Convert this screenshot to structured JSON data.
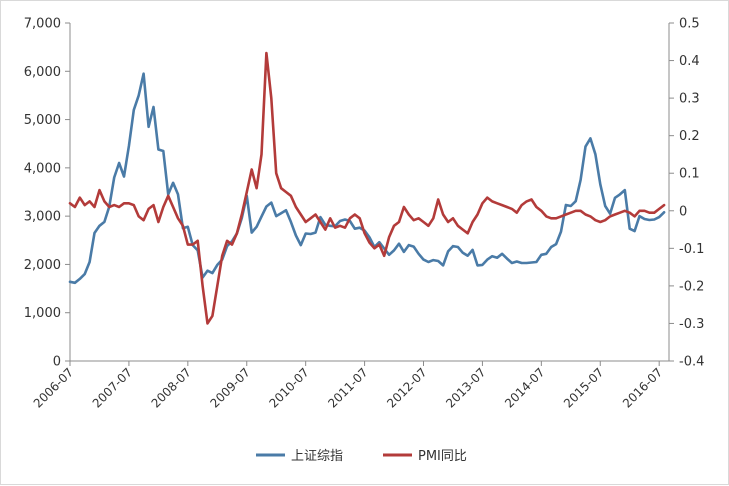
{
  "chart_data": {
    "type": "line",
    "title": "",
    "xlabel": "",
    "ylabel_left": "",
    "ylabel_right": "",
    "left_axis": {
      "range": [
        0,
        7000
      ],
      "ticks": [
        0,
        1000,
        2000,
        3000,
        4000,
        5000,
        6000,
        7000
      ],
      "tick_labels": [
        "0",
        "1,000",
        "2,000",
        "3,000",
        "4,000",
        "5,000",
        "6,000",
        "7,000"
      ]
    },
    "right_axis": {
      "range": [
        -0.4,
        0.5
      ],
      "ticks": [
        -0.4,
        -0.3,
        -0.2,
        -0.1,
        0,
        0.1,
        0.2,
        0.3,
        0.4,
        0.5
      ],
      "tick_labels": [
        "-0.4",
        "-0.3",
        "-0.2",
        "-0.1",
        "0",
        "0.1",
        "0.2",
        "0.3",
        "0.4",
        "0.5"
      ]
    },
    "x_axis": {
      "range": [
        "2006-07",
        "2016-09"
      ],
      "tick_labels": [
        "2006-07",
        "2007-07",
        "2008-07",
        "2009-07",
        "2010-07",
        "2011-07",
        "2012-07",
        "2013-07",
        "2014-07",
        "2015-07",
        "2016-07"
      ]
    },
    "grid": false,
    "legend_position": "bottom",
    "series": [
      {
        "name": "上证综指",
        "axis": "left",
        "color": "#4a7ba7",
        "points": [
          [
            "2006-07",
            1640
          ],
          [
            "2006-08",
            1620
          ],
          [
            "2006-09",
            1700
          ],
          [
            "2006-10",
            1800
          ],
          [
            "2006-11",
            2050
          ],
          [
            "2006-12",
            2650
          ],
          [
            "2007-01",
            2800
          ],
          [
            "2007-02",
            2880
          ],
          [
            "2007-03",
            3200
          ],
          [
            "2007-04",
            3800
          ],
          [
            "2007-05",
            4100
          ],
          [
            "2007-06",
            3820
          ],
          [
            "2007-07",
            4450
          ],
          [
            "2007-08",
            5200
          ],
          [
            "2007-09",
            5500
          ],
          [
            "2007-10",
            5950
          ],
          [
            "2007-11",
            4850
          ],
          [
            "2007-12",
            5260
          ],
          [
            "2008-01",
            4380
          ],
          [
            "2008-02",
            4350
          ],
          [
            "2008-03",
            3450
          ],
          [
            "2008-04",
            3690
          ],
          [
            "2008-05",
            3450
          ],
          [
            "2008-06",
            2750
          ],
          [
            "2008-07",
            2780
          ],
          [
            "2008-08",
            2400
          ],
          [
            "2008-09",
            2290
          ],
          [
            "2008-10",
            1730
          ],
          [
            "2008-11",
            1870
          ],
          [
            "2008-12",
            1820
          ],
          [
            "2009-01",
            1990
          ],
          [
            "2009-02",
            2100
          ],
          [
            "2009-03",
            2380
          ],
          [
            "2009-04",
            2480
          ],
          [
            "2009-05",
            2640
          ],
          [
            "2009-06",
            2960
          ],
          [
            "2009-07",
            3420
          ],
          [
            "2009-08",
            2660
          ],
          [
            "2009-09",
            2780
          ],
          [
            "2009-10",
            2990
          ],
          [
            "2009-11",
            3200
          ],
          [
            "2009-12",
            3280
          ],
          [
            "2010-01",
            3000
          ],
          [
            "2010-02",
            3060
          ],
          [
            "2010-03",
            3120
          ],
          [
            "2010-04",
            2880
          ],
          [
            "2010-05",
            2600
          ],
          [
            "2010-06",
            2400
          ],
          [
            "2010-07",
            2640
          ],
          [
            "2010-08",
            2630
          ],
          [
            "2010-09",
            2660
          ],
          [
            "2010-10",
            2980
          ],
          [
            "2010-11",
            2820
          ],
          [
            "2010-12",
            2800
          ],
          [
            "2011-01",
            2790
          ],
          [
            "2011-02",
            2900
          ],
          [
            "2011-03",
            2930
          ],
          [
            "2011-04",
            2900
          ],
          [
            "2011-05",
            2740
          ],
          [
            "2011-06",
            2760
          ],
          [
            "2011-07",
            2700
          ],
          [
            "2011-08",
            2560
          ],
          [
            "2011-09",
            2360
          ],
          [
            "2011-10",
            2460
          ],
          [
            "2011-11",
            2330
          ],
          [
            "2011-12",
            2200
          ],
          [
            "2012-01",
            2290
          ],
          [
            "2012-02",
            2430
          ],
          [
            "2012-03",
            2260
          ],
          [
            "2012-04",
            2400
          ],
          [
            "2012-05",
            2370
          ],
          [
            "2012-06",
            2220
          ],
          [
            "2012-07",
            2100
          ],
          [
            "2012-08",
            2050
          ],
          [
            "2012-09",
            2090
          ],
          [
            "2012-10",
            2070
          ],
          [
            "2012-11",
            1980
          ],
          [
            "2012-12",
            2270
          ],
          [
            "2013-01",
            2380
          ],
          [
            "2013-02",
            2360
          ],
          [
            "2013-03",
            2240
          ],
          [
            "2013-04",
            2180
          ],
          [
            "2013-05",
            2300
          ],
          [
            "2013-06",
            1980
          ],
          [
            "2013-07",
            1990
          ],
          [
            "2013-08",
            2100
          ],
          [
            "2013-09",
            2170
          ],
          [
            "2013-10",
            2140
          ],
          [
            "2013-11",
            2220
          ],
          [
            "2013-12",
            2120
          ],
          [
            "2014-01",
            2030
          ],
          [
            "2014-02",
            2060
          ],
          [
            "2014-03",
            2030
          ],
          [
            "2014-04",
            2030
          ],
          [
            "2014-05",
            2040
          ],
          [
            "2014-06",
            2050
          ],
          [
            "2014-07",
            2200
          ],
          [
            "2014-08",
            2220
          ],
          [
            "2014-09",
            2360
          ],
          [
            "2014-10",
            2420
          ],
          [
            "2014-11",
            2680
          ],
          [
            "2014-12",
            3230
          ],
          [
            "2015-01",
            3210
          ],
          [
            "2015-02",
            3310
          ],
          [
            "2015-03",
            3750
          ],
          [
            "2015-04",
            4440
          ],
          [
            "2015-05",
            4610
          ],
          [
            "2015-06",
            4280
          ],
          [
            "2015-07",
            3660
          ],
          [
            "2015-08",
            3210
          ],
          [
            "2015-09",
            3050
          ],
          [
            "2015-10",
            3380
          ],
          [
            "2015-11",
            3450
          ],
          [
            "2015-12",
            3540
          ],
          [
            "2016-01",
            2740
          ],
          [
            "2016-02",
            2690
          ],
          [
            "2016-03",
            3000
          ],
          [
            "2016-04",
            2940
          ],
          [
            "2016-05",
            2920
          ],
          [
            "2016-06",
            2930
          ],
          [
            "2016-07",
            2980
          ],
          [
            "2016-08",
            3080
          ]
        ]
      },
      {
        "name": "PMI同比",
        "axis": "right",
        "color": "#b33b3a",
        "points": [
          [
            "2006-07",
            0.02
          ],
          [
            "2006-08",
            0.01
          ],
          [
            "2006-09",
            0.035
          ],
          [
            "2006-10",
            0.015
          ],
          [
            "2006-11",
            0.025
          ],
          [
            "2006-12",
            0.01
          ],
          [
            "2007-01",
            0.055
          ],
          [
            "2007-02",
            0.025
          ],
          [
            "2007-03",
            0.01
          ],
          [
            "2007-04",
            0.015
          ],
          [
            "2007-05",
            0.01
          ],
          [
            "2007-06",
            0.02
          ],
          [
            "2007-07",
            0.02
          ],
          [
            "2007-08",
            0.015
          ],
          [
            "2007-09",
            -0.015
          ],
          [
            "2007-10",
            -0.025
          ],
          [
            "2007-11",
            0.005
          ],
          [
            "2007-12",
            0.015
          ],
          [
            "2008-01",
            -0.03
          ],
          [
            "2008-02",
            0.01
          ],
          [
            "2008-03",
            0.04
          ],
          [
            "2008-04",
            0.01
          ],
          [
            "2008-05",
            -0.02
          ],
          [
            "2008-06",
            -0.04
          ],
          [
            "2008-07",
            -0.09
          ],
          [
            "2008-08",
            -0.09
          ],
          [
            "2008-09",
            -0.08
          ],
          [
            "2008-10",
            -0.2
          ],
          [
            "2008-11",
            -0.3
          ],
          [
            "2008-12",
            -0.28
          ],
          [
            "2009-01",
            -0.2
          ],
          [
            "2009-02",
            -0.12
          ],
          [
            "2009-03",
            -0.08
          ],
          [
            "2009-04",
            -0.09
          ],
          [
            "2009-05",
            -0.06
          ],
          [
            "2009-06",
            -0.01
          ],
          [
            "2009-07",
            0.05
          ],
          [
            "2009-08",
            0.11
          ],
          [
            "2009-09",
            0.06
          ],
          [
            "2009-10",
            0.15
          ],
          [
            "2009-11",
            0.42
          ],
          [
            "2009-12",
            0.3
          ],
          [
            "2010-01",
            0.1
          ],
          [
            "2010-02",
            0.06
          ],
          [
            "2010-03",
            0.05
          ],
          [
            "2010-04",
            0.04
          ],
          [
            "2010-05",
            0.01
          ],
          [
            "2010-06",
            -0.01
          ],
          [
            "2010-07",
            -0.03
          ],
          [
            "2010-08",
            -0.02
          ],
          [
            "2010-09",
            -0.01
          ],
          [
            "2010-10",
            -0.03
          ],
          [
            "2010-11",
            -0.05
          ],
          [
            "2010-12",
            -0.02
          ],
          [
            "2011-01",
            -0.045
          ],
          [
            "2011-02",
            -0.04
          ],
          [
            "2011-03",
            -0.045
          ],
          [
            "2011-04",
            -0.02
          ],
          [
            "2011-05",
            -0.01
          ],
          [
            "2011-06",
            -0.02
          ],
          [
            "2011-07",
            -0.06
          ],
          [
            "2011-08",
            -0.085
          ],
          [
            "2011-09",
            -0.1
          ],
          [
            "2011-10",
            -0.09
          ],
          [
            "2011-11",
            -0.12
          ],
          [
            "2011-12",
            -0.07
          ],
          [
            "2012-01",
            -0.04
          ],
          [
            "2012-02",
            -0.03
          ],
          [
            "2012-03",
            0.01
          ],
          [
            "2012-04",
            -0.01
          ],
          [
            "2012-05",
            -0.025
          ],
          [
            "2012-06",
            -0.02
          ],
          [
            "2012-07",
            -0.03
          ],
          [
            "2012-08",
            -0.04
          ],
          [
            "2012-09",
            -0.02
          ],
          [
            "2012-10",
            0.03
          ],
          [
            "2012-11",
            -0.01
          ],
          [
            "2012-12",
            -0.03
          ],
          [
            "2013-01",
            -0.02
          ],
          [
            "2013-02",
            -0.04
          ],
          [
            "2013-03",
            -0.05
          ],
          [
            "2013-04",
            -0.06
          ],
          [
            "2013-05",
            -0.03
          ],
          [
            "2013-06",
            -0.01
          ],
          [
            "2013-07",
            0.02
          ],
          [
            "2013-08",
            0.035
          ],
          [
            "2013-09",
            0.025
          ],
          [
            "2013-10",
            0.02
          ],
          [
            "2013-11",
            0.015
          ],
          [
            "2013-12",
            0.01
          ],
          [
            "2014-01",
            0.005
          ],
          [
            "2014-02",
            -0.005
          ],
          [
            "2014-03",
            0.015
          ],
          [
            "2014-04",
            0.025
          ],
          [
            "2014-05",
            0.03
          ],
          [
            "2014-06",
            0.01
          ],
          [
            "2014-07",
            0.0
          ],
          [
            "2014-08",
            -0.015
          ],
          [
            "2014-09",
            -0.02
          ],
          [
            "2014-10",
            -0.02
          ],
          [
            "2014-11",
            -0.015
          ],
          [
            "2014-12",
            -0.01
          ],
          [
            "2015-01",
            -0.005
          ],
          [
            "2015-02",
            0.0
          ],
          [
            "2015-03",
            0.0
          ],
          [
            "2015-04",
            -0.01
          ],
          [
            "2015-05",
            -0.015
          ],
          [
            "2015-06",
            -0.025
          ],
          [
            "2015-07",
            -0.03
          ],
          [
            "2015-08",
            -0.025
          ],
          [
            "2015-09",
            -0.015
          ],
          [
            "2015-10",
            -0.01
          ],
          [
            "2015-11",
            -0.005
          ],
          [
            "2015-12",
            0.0
          ],
          [
            "2016-01",
            -0.005
          ],
          [
            "2016-02",
            -0.015
          ],
          [
            "2016-03",
            0.0
          ],
          [
            "2016-04",
            0.0
          ],
          [
            "2016-05",
            -0.005
          ],
          [
            "2016-06",
            -0.005
          ],
          [
            "2016-07",
            0.005
          ],
          [
            "2016-08",
            0.015
          ]
        ]
      }
    ]
  }
}
